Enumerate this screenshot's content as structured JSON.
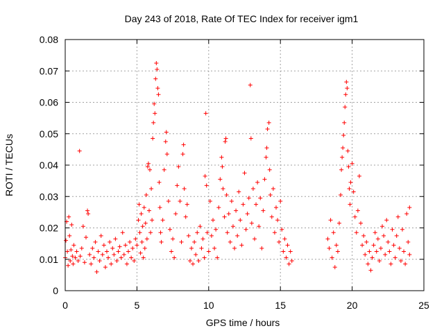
{
  "chart_data": {
    "type": "scatter",
    "title": "Day 243 of 2018, Rate Of TEC Index for receiver igm1",
    "xlabel": "GPS time / hours",
    "ylabel": "ROTI / TECUs",
    "xlim": [
      0,
      25
    ],
    "ylim": [
      0,
      0.08
    ],
    "xticks": [
      0,
      5,
      10,
      15,
      20,
      25
    ],
    "xtick_labels": [
      "0",
      "5",
      "10",
      "15",
      "20",
      "25"
    ],
    "yticks": [
      0,
      0.01,
      0.02,
      0.03,
      0.04,
      0.05,
      0.06,
      0.07,
      0.08
    ],
    "ytick_labels": [
      "0",
      "0.01",
      "0.02",
      "0.03",
      "0.04",
      "0.05",
      "0.06",
      "0.07",
      "0.08"
    ],
    "grid": true,
    "marker": "+",
    "color": "#ff0000",
    "series": [
      {
        "name": "ROTI",
        "points": [
          [
            0.0,
            0.0105
          ],
          [
            0.05,
            0.016
          ],
          [
            0.1,
            0.022
          ],
          [
            0.15,
            0.0125
          ],
          [
            0.2,
            0.008
          ],
          [
            0.25,
            0.0235
          ],
          [
            0.3,
            0.0175
          ],
          [
            0.35,
            0.0095
          ],
          [
            0.4,
            0.013
          ],
          [
            0.45,
            0.021
          ],
          [
            0.5,
            0.011
          ],
          [
            0.55,
            0.0085
          ],
          [
            0.6,
            0.0145
          ],
          [
            0.7,
            0.0105
          ],
          [
            0.8,
            0.0125
          ],
          [
            0.9,
            0.0095
          ],
          [
            1.0,
            0.0445
          ],
          [
            1.05,
            0.011
          ],
          [
            1.15,
            0.0135
          ],
          [
            1.25,
            0.0205
          ],
          [
            1.35,
            0.009
          ],
          [
            1.45,
            0.017
          ],
          [
            1.55,
            0.0255
          ],
          [
            1.6,
            0.0245
          ],
          [
            1.7,
            0.0115
          ],
          [
            1.8,
            0.0085
          ],
          [
            1.9,
            0.0135
          ],
          [
            2.0,
            0.0105
          ],
          [
            2.1,
            0.0155
          ],
          [
            2.2,
            0.006
          ],
          [
            2.3,
            0.0125
          ],
          [
            2.4,
            0.0095
          ],
          [
            2.5,
            0.0175
          ],
          [
            2.6,
            0.0115
          ],
          [
            2.7,
            0.0145
          ],
          [
            2.8,
            0.0075
          ],
          [
            2.9,
            0.0125
          ],
          [
            3.0,
            0.0105
          ],
          [
            3.1,
            0.0155
          ],
          [
            3.2,
            0.0085
          ],
          [
            3.3,
            0.0135
          ],
          [
            3.4,
            0.0115
          ],
          [
            3.5,
            0.0165
          ],
          [
            3.6,
            0.0095
          ],
          [
            3.7,
            0.0125
          ],
          [
            3.8,
            0.014
          ],
          [
            3.9,
            0.0105
          ],
          [
            4.0,
            0.0185
          ],
          [
            4.1,
            0.0115
          ],
          [
            4.2,
            0.0145
          ],
          [
            4.3,
            0.0085
          ],
          [
            4.4,
            0.0125
          ],
          [
            4.5,
            0.0155
          ],
          [
            4.6,
            0.0105
          ],
          [
            4.7,
            0.0135
          ],
          [
            4.8,
            0.0095
          ],
          [
            4.9,
            0.0165
          ],
          [
            5.0,
            0.0145
          ],
          [
            5.1,
            0.0225
          ],
          [
            5.15,
            0.0275
          ],
          [
            5.2,
            0.0185
          ],
          [
            5.25,
            0.012
          ],
          [
            5.3,
            0.0245
          ],
          [
            5.35,
            0.0155
          ],
          [
            5.4,
            0.0205
          ],
          [
            5.45,
            0.0105
          ],
          [
            5.5,
            0.0265
          ],
          [
            5.55,
            0.0135
          ],
          [
            5.6,
            0.0215
          ],
          [
            5.65,
            0.0305
          ],
          [
            5.7,
            0.0165
          ],
          [
            5.75,
            0.0395
          ],
          [
            5.8,
            0.0405
          ],
          [
            5.85,
            0.0255
          ],
          [
            5.9,
            0.0385
          ],
          [
            5.95,
            0.0185
          ],
          [
            6.0,
            0.0325
          ],
          [
            6.05,
            0.0225
          ],
          [
            6.1,
            0.0485
          ],
          [
            6.15,
            0.0535
          ],
          [
            6.2,
            0.0595
          ],
          [
            6.25,
            0.0565
          ],
          [
            6.3,
            0.0675
          ],
          [
            6.35,
            0.0725
          ],
          [
            6.4,
            0.0705
          ],
          [
            6.45,
            0.0645
          ],
          [
            6.5,
            0.0625
          ],
          [
            6.55,
            0.0345
          ],
          [
            6.6,
            0.0265
          ],
          [
            6.65,
            0.0185
          ],
          [
            6.7,
            0.0155
          ],
          [
            6.8,
            0.0225
          ],
          [
            6.9,
            0.0385
          ],
          [
            7.0,
            0.0475
          ],
          [
            7.05,
            0.0505
          ],
          [
            7.1,
            0.0435
          ],
          [
            7.2,
            0.0285
          ],
          [
            7.3,
            0.0195
          ],
          [
            7.4,
            0.0125
          ],
          [
            7.5,
            0.0165
          ],
          [
            7.6,
            0.0105
          ],
          [
            7.7,
            0.0245
          ],
          [
            7.8,
            0.0335
          ],
          [
            7.9,
            0.0395
          ],
          [
            8.0,
            0.0285
          ],
          [
            8.1,
            0.0155
          ],
          [
            8.2,
            0.0435
          ],
          [
            8.25,
            0.0465
          ],
          [
            8.3,
            0.0325
          ],
          [
            8.4,
            0.0235
          ],
          [
            8.5,
            0.0275
          ],
          [
            8.6,
            0.0175
          ],
          [
            8.7,
            0.0095
          ],
          [
            8.8,
            0.0135
          ],
          [
            8.9,
            0.0085
          ],
          [
            9.0,
            0.0155
          ],
          [
            9.1,
            0.0115
          ],
          [
            9.2,
            0.0185
          ],
          [
            9.3,
            0.0095
          ],
          [
            9.4,
            0.0205
          ],
          [
            9.5,
            0.0135
          ],
          [
            9.6,
            0.0165
          ],
          [
            9.7,
            0.0105
          ],
          [
            9.75,
            0.0365
          ],
          [
            9.8,
            0.0565
          ],
          [
            9.85,
            0.0335
          ],
          [
            9.9,
            0.0185
          ],
          [
            10.0,
            0.0125
          ],
          [
            10.1,
            0.0285
          ],
          [
            10.2,
            0.0175
          ],
          [
            10.3,
            0.0225
          ],
          [
            10.4,
            0.0135
          ],
          [
            10.5,
            0.0195
          ],
          [
            10.6,
            0.0105
          ],
          [
            10.7,
            0.0265
          ],
          [
            10.8,
            0.0355
          ],
          [
            10.9,
            0.0425
          ],
          [
            10.95,
            0.0395
          ],
          [
            11.0,
            0.0325
          ],
          [
            11.1,
            0.0235
          ],
          [
            11.15,
            0.0475
          ],
          [
            11.2,
            0.0485
          ],
          [
            11.25,
            0.0305
          ],
          [
            11.3,
            0.0185
          ],
          [
            11.4,
            0.0245
          ],
          [
            11.5,
            0.0155
          ],
          [
            11.6,
            0.0285
          ],
          [
            11.7,
            0.0205
          ],
          [
            11.8,
            0.0135
          ],
          [
            11.9,
            0.0255
          ],
          [
            12.0,
            0.0175
          ],
          [
            12.1,
            0.0315
          ],
          [
            12.2,
            0.0225
          ],
          [
            12.3,
            0.0145
          ],
          [
            12.4,
            0.0275
          ],
          [
            12.5,
            0.0375
          ],
          [
            12.6,
            0.0195
          ],
          [
            12.7,
            0.0245
          ],
          [
            12.8,
            0.0295
          ],
          [
            12.9,
            0.0655
          ],
          [
            12.95,
            0.0485
          ],
          [
            13.0,
            0.0215
          ],
          [
            13.1,
            0.0325
          ],
          [
            13.2,
            0.0165
          ],
          [
            13.3,
            0.0275
          ],
          [
            13.4,
            0.0345
          ],
          [
            13.5,
            0.0205
          ],
          [
            13.6,
            0.0295
          ],
          [
            13.7,
            0.0135
          ],
          [
            13.8,
            0.0255
          ],
          [
            13.9,
            0.0355
          ],
          [
            14.0,
            0.0425
          ],
          [
            14.05,
            0.0455
          ],
          [
            14.1,
            0.0515
          ],
          [
            14.2,
            0.0535
          ],
          [
            14.25,
            0.0385
          ],
          [
            14.3,
            0.0305
          ],
          [
            14.4,
            0.0235
          ],
          [
            14.5,
            0.0325
          ],
          [
            14.6,
            0.0185
          ],
          [
            14.7,
            0.0265
          ],
          [
            14.8,
            0.0225
          ],
          [
            14.9,
            0.0155
          ],
          [
            15.0,
            0.0285
          ],
          [
            15.1,
            0.0195
          ],
          [
            15.2,
            0.0125
          ],
          [
            15.3,
            0.0165
          ],
          [
            15.4,
            0.0105
          ],
          [
            15.5,
            0.0145
          ],
          [
            15.6,
            0.0085
          ],
          [
            15.7,
            0.0125
          ],
          [
            15.8,
            0.0095
          ],
          [
            18.3,
            0.0165
          ],
          [
            18.4,
            0.0135
          ],
          [
            18.5,
            0.0225
          ],
          [
            18.6,
            0.0105
          ],
          [
            18.7,
            0.0185
          ],
          [
            18.8,
            0.0075
          ],
          [
            18.9,
            0.0145
          ],
          [
            19.0,
            0.0125
          ],
          [
            19.1,
            0.0215
          ],
          [
            19.2,
            0.0305
          ],
          [
            19.25,
            0.0385
          ],
          [
            19.3,
            0.0425
          ],
          [
            19.35,
            0.0455
          ],
          [
            19.4,
            0.0495
          ],
          [
            19.45,
            0.0535
          ],
          [
            19.5,
            0.0585
          ],
          [
            19.55,
            0.0625
          ],
          [
            19.6,
            0.0665
          ],
          [
            19.65,
            0.0645
          ],
          [
            19.7,
            0.0445
          ],
          [
            19.75,
            0.0395
          ],
          [
            19.8,
            0.0325
          ],
          [
            19.85,
            0.0275
          ],
          [
            19.9,
            0.0345
          ],
          [
            20.0,
            0.0405
          ],
          [
            20.1,
            0.0315
          ],
          [
            20.2,
            0.0235
          ],
          [
            20.3,
            0.0185
          ],
          [
            20.4,
            0.0255
          ],
          [
            20.5,
            0.0365
          ],
          [
            20.6,
            0.0215
          ],
          [
            20.7,
            0.0145
          ],
          [
            20.8,
            0.0175
          ],
          [
            20.9,
            0.0115
          ],
          [
            21.0,
            0.0155
          ],
          [
            21.1,
            0.0085
          ],
          [
            21.2,
            0.0125
          ],
          [
            21.3,
            0.0065
          ],
          [
            21.4,
            0.0105
          ],
          [
            21.5,
            0.0145
          ],
          [
            21.6,
            0.0185
          ],
          [
            21.7,
            0.0125
          ],
          [
            21.8,
            0.0165
          ],
          [
            21.9,
            0.0095
          ],
          [
            22.0,
            0.0135
          ],
          [
            22.1,
            0.0205
          ],
          [
            22.2,
            0.0175
          ],
          [
            22.3,
            0.0115
          ],
          [
            22.4,
            0.0225
          ],
          [
            22.5,
            0.0155
          ],
          [
            22.6,
            0.0125
          ],
          [
            22.7,
            0.0085
          ],
          [
            22.8,
            0.0195
          ],
          [
            22.9,
            0.0145
          ],
          [
            23.0,
            0.0105
          ],
          [
            23.1,
            0.0175
          ],
          [
            23.2,
            0.0235
          ],
          [
            23.3,
            0.0135
          ],
          [
            23.4,
            0.0095
          ],
          [
            23.5,
            0.0195
          ],
          [
            23.6,
            0.0125
          ],
          [
            23.7,
            0.0085
          ],
          [
            23.8,
            0.0245
          ],
          [
            23.9,
            0.0155
          ],
          [
            24.0,
            0.0265
          ],
          [
            24.0,
            0.0115
          ]
        ]
      }
    ]
  }
}
